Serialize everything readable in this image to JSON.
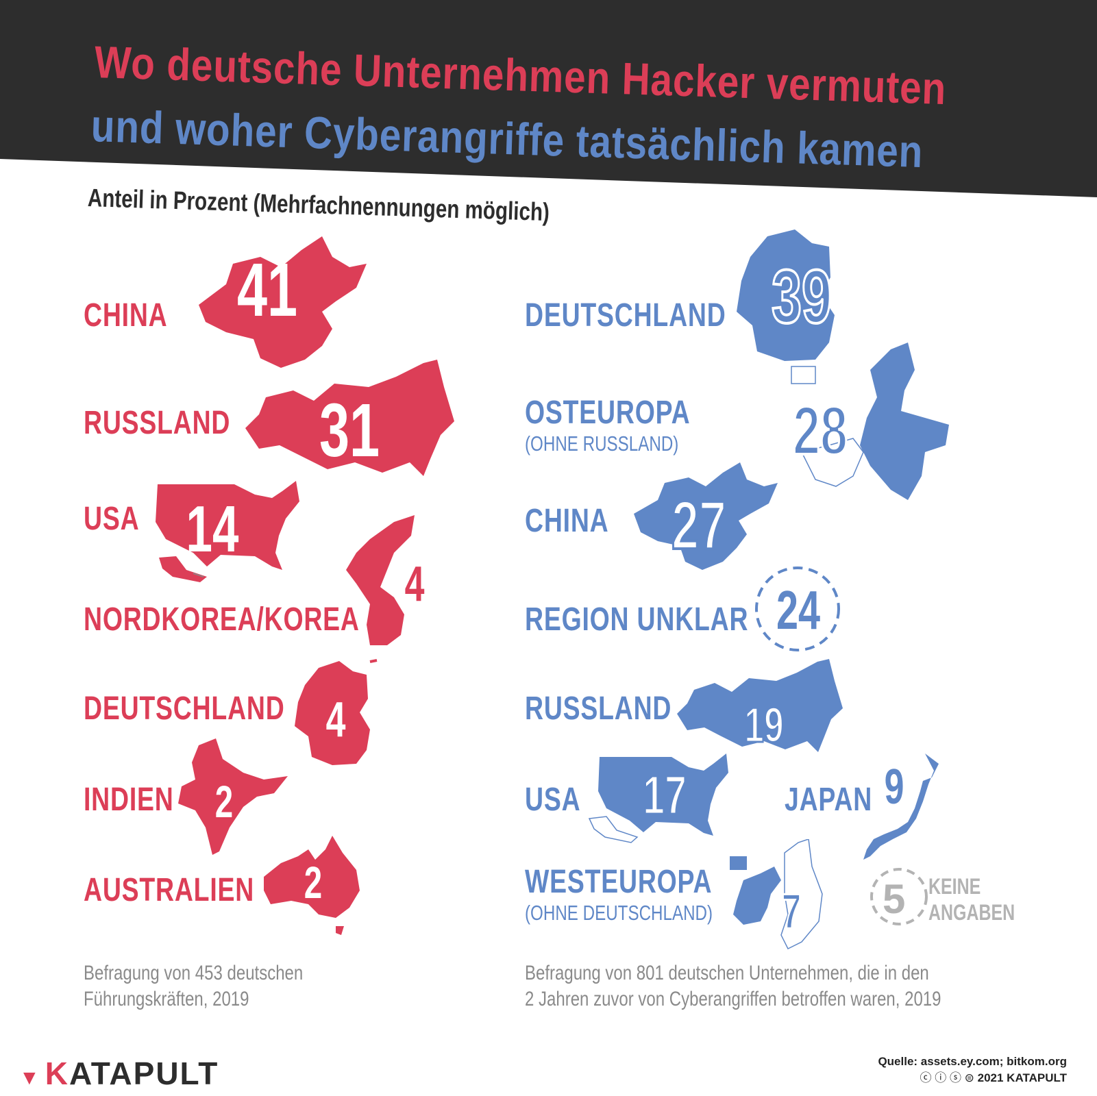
{
  "title": {
    "line1": "Wo deutsche Unternehmen Hacker vermuten",
    "line2": "und woher Cyberangriffe tatsächlich kamen"
  },
  "subtitle": "Anteil in Prozent (Mehrfachnennungen möglich)",
  "colors": {
    "suspected": "#dc3e57",
    "actual": "#5f87c7",
    "banner": "#2d2d2d",
    "neutral": "#b3b3b3"
  },
  "chart_data": [
    {
      "type": "table",
      "side": "left",
      "categories": [
        "CHINA",
        "RUSSLAND",
        "USA",
        "NORDKOREA/KOREA",
        "DEUTSCHLAND",
        "INDIEN",
        "AUSTRALIEN"
      ],
      "values": [
        41,
        31,
        14,
        4,
        4,
        2,
        2
      ],
      "note": [
        "Befragung von 453 deutschen",
        "Führungskräften, 2019"
      ]
    },
    {
      "type": "table",
      "side": "right",
      "categories": [
        "DEUTSCHLAND",
        "OSTEUROPA",
        "CHINA",
        "REGION UNKLAR",
        "RUSSLAND",
        "USA",
        "JAPAN",
        "WESTEUROPA",
        "KEINE ANGABEN"
      ],
      "sublabels": {
        "OSTEUROPA": "(OHNE RUSSLAND)",
        "WESTEUROPA": "(OHNE DEUTSCHLAND)"
      },
      "values": [
        39,
        28,
        27,
        24,
        19,
        17,
        9,
        7,
        5
      ],
      "note": [
        "Befragung von 801 deutschen Unternehmen, die in den",
        "2 Jahren zuvor von Cyberangriffen betroffen waren, 2019"
      ]
    }
  ],
  "na_label": [
    "KEINE",
    "ANGABEN"
  ],
  "brand": {
    "k": "K",
    "rest": "ATAPULT"
  },
  "source": {
    "line1": "Quelle: assets.ey.com; bitkom.org",
    "line2": "2021 KATAPULT"
  }
}
